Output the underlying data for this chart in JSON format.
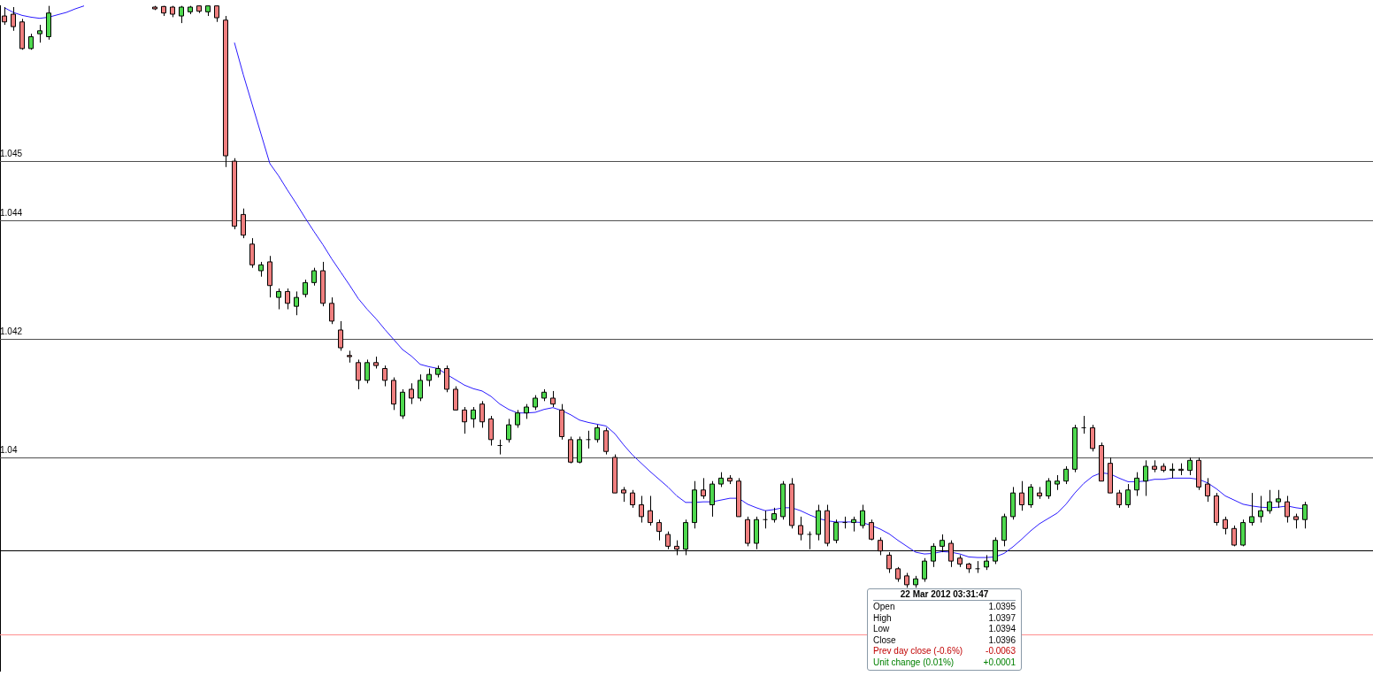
{
  "chart_data": {
    "type": "candlestick",
    "categories": [
      null,
      null,
      null,
      null,
      null,
      null,
      null,
      null,
      null,
      null,
      null,
      null,
      null,
      null,
      null,
      null,
      null,
      null,
      null,
      null,
      null,
      null,
      null,
      null,
      null,
      null,
      null,
      null,
      null,
      null,
      null,
      null,
      null,
      null,
      null,
      null,
      null,
      null,
      null,
      null,
      null,
      null,
      null,
      null,
      null,
      null,
      null,
      null,
      null,
      null,
      null,
      null,
      null,
      null,
      null,
      null,
      null,
      null,
      null,
      null,
      null,
      null,
      null,
      null,
      null,
      null,
      null,
      null,
      null,
      null,
      null,
      null,
      null,
      null,
      null,
      null,
      null,
      null,
      null,
      null,
      null,
      null,
      null,
      null,
      null,
      null,
      null,
      null,
      null,
      null,
      null,
      null,
      null,
      null,
      null,
      null,
      null,
      null,
      null,
      null,
      null,
      null,
      null,
      null,
      null,
      null,
      null,
      null,
      null,
      null,
      null,
      null,
      null,
      null,
      null,
      null,
      null,
      null,
      null,
      null,
      null,
      null,
      null,
      null,
      null,
      null,
      null,
      null,
      null,
      null,
      null,
      null,
      null,
      null,
      null,
      null,
      null,
      null,
      null,
      null,
      null,
      null,
      null,
      null,
      null,
      null,
      null,
      null
    ],
    "ohlc": [
      [
        1.04745,
        1.0476,
        1.0473,
        1.04735
      ],
      [
        1.04748,
        1.0476,
        1.0472,
        1.04727
      ],
      [
        1.04735,
        1.0474,
        1.04688,
        1.0469
      ],
      [
        1.0469,
        1.04715,
        1.04688,
        1.0471
      ],
      [
        1.04715,
        1.0473,
        1.047,
        1.0472
      ],
      [
        1.0471,
        1.04762,
        1.04705,
        1.0475
      ],
      null,
      null,
      null,
      null,
      null,
      null,
      null,
      null,
      null,
      null,
      null,
      [
        1.0476,
        1.04762,
        1.04755,
        1.04757
      ],
      [
        1.04761,
        1.04762,
        1.04745,
        1.0475
      ],
      [
        1.0476,
        1.04762,
        1.04743,
        1.04748
      ],
      [
        1.04745,
        1.04762,
        1.04733,
        1.0476
      ],
      [
        1.04752,
        1.04762,
        1.04748,
        1.0476
      ],
      [
        1.04762,
        1.04762,
        1.0475,
        1.04753
      ],
      [
        1.04752,
        1.04762,
        1.04745,
        1.04762
      ],
      [
        1.04762,
        1.04762,
        1.04735,
        1.04742
      ],
      [
        1.04738,
        1.04745,
        1.0449,
        1.04509
      ],
      [
        1.045,
        1.04505,
        1.04385,
        1.0439
      ],
      [
        1.0441,
        1.0442,
        1.0437,
        1.04375
      ],
      [
        1.0436,
        1.0437,
        1.0432,
        1.04325
      ],
      [
        1.04315,
        1.0433,
        1.04305,
        1.04325
      ],
      [
        1.0433,
        1.0434,
        1.0427,
        1.0429
      ],
      [
        1.0427,
        1.04285,
        1.0425,
        1.0428
      ],
      [
        1.0428,
        1.04285,
        1.0425,
        1.0426
      ],
      [
        1.04255,
        1.0428,
        1.0424,
        1.0427
      ],
      [
        1.04275,
        1.043,
        1.0427,
        1.04295
      ],
      [
        1.04295,
        1.0432,
        1.0429,
        1.04315
      ],
      [
        1.04315,
        1.0433,
        1.04255,
        1.0426
      ],
      [
        1.0426,
        1.0427,
        1.04225,
        1.0423
      ],
      [
        1.04215,
        1.0423,
        1.0418,
        1.04185
      ],
      [
        1.04172,
        1.0418,
        1.0416,
        1.0417
      ],
      [
        1.0416,
        1.04165,
        1.04115,
        1.0413
      ],
      [
        1.0413,
        1.04165,
        1.04125,
        1.0416
      ],
      [
        1.0416,
        1.0417,
        1.0415,
        1.04155
      ],
      [
        1.0415,
        1.04155,
        1.0412,
        1.0413
      ],
      [
        1.0413,
        1.04135,
        1.0408,
        1.0409
      ],
      [
        1.0407,
        1.04115,
        1.04065,
        1.0411
      ],
      [
        1.04115,
        1.04125,
        1.0409,
        1.041
      ],
      [
        1.041,
        1.0414,
        1.04095,
        1.0413
      ],
      [
        1.0413,
        1.0415,
        1.0412,
        1.0414
      ],
      [
        1.0414,
        1.04155,
        1.04135,
        1.0415
      ],
      [
        1.0415,
        1.04155,
        1.0411,
        1.04115
      ],
      [
        1.04115,
        1.0412,
        1.0408,
        1.0408
      ],
      [
        1.0408,
        1.04085,
        1.0404,
        1.0406
      ],
      [
        1.04065,
        1.04085,
        1.0405,
        1.0408
      ],
      [
        1.0409,
        1.04095,
        1.0405,
        1.0406
      ],
      [
        1.04065,
        1.0407,
        1.0402,
        1.0403
      ],
      [
        1.0402,
        1.0403,
        1.04005,
        1.0402
      ],
      [
        1.0403,
        1.04065,
        1.04025,
        1.04055
      ],
      [
        1.04055,
        1.0408,
        1.0405,
        1.04075
      ],
      [
        1.04075,
        1.0409,
        1.04065,
        1.04085
      ],
      [
        1.04085,
        1.04105,
        1.0408,
        1.041
      ],
      [
        1.041,
        1.04115,
        1.04095,
        1.0411
      ],
      [
        1.041,
        1.04112,
        1.04085,
        1.0409
      ],
      [
        1.0408,
        1.0409,
        1.0403,
        1.04035
      ],
      [
        1.0403,
        1.04035,
        1.0399,
        1.03992
      ],
      [
        1.03992,
        1.04035,
        1.0399,
        1.0403
      ],
      [
        1.0403,
        1.04045,
        1.04015,
        1.0403
      ],
      [
        1.0403,
        1.04055,
        1.04025,
        1.0405
      ],
      [
        1.04045,
        1.0405,
        1.04005,
        1.0401
      ],
      [
        1.04,
        1.04005,
        1.0394,
        1.0394
      ],
      [
        1.03945,
        1.0395,
        1.03925,
        1.0394
      ],
      [
        1.0394,
        1.03945,
        1.03915,
        1.0392
      ],
      [
        1.0392,
        1.03935,
        1.0389,
        1.039
      ],
      [
        1.0391,
        1.03935,
        1.03885,
        1.0389
      ],
      [
        1.0389,
        1.03895,
        1.0386,
        1.03875
      ],
      [
        1.0387,
        1.03875,
        1.03845,
        1.0385
      ],
      [
        1.0385,
        1.0386,
        1.03835,
        1.03845
      ],
      [
        1.03845,
        1.03895,
        1.03835,
        1.0389
      ],
      [
        1.0389,
        1.0396,
        1.0388,
        1.03945
      ],
      [
        1.03945,
        1.03965,
        1.0393,
        1.03935
      ],
      [
        1.0392,
        1.0396,
        1.039,
        1.03955
      ],
      [
        1.03955,
        1.03975,
        1.0395,
        1.03965
      ],
      [
        1.03965,
        1.0397,
        1.03955,
        1.0396
      ],
      [
        1.0396,
        1.03965,
        1.039,
        1.039
      ],
      [
        1.03895,
        1.039,
        1.0385,
        1.03855
      ],
      [
        1.03855,
        1.039,
        1.03845,
        1.03895
      ],
      [
        1.03895,
        1.0391,
        1.0388,
        1.03895
      ],
      [
        1.03895,
        1.03915,
        1.0389,
        1.03905
      ],
      [
        1.039,
        1.0396,
        1.03895,
        1.03955
      ],
      [
        1.03955,
        1.03965,
        1.0388,
        1.03885
      ],
      [
        1.03885,
        1.039,
        1.0386,
        1.0387
      ],
      [
        1.0387,
        1.03875,
        1.03845,
        1.0387
      ],
      [
        1.0387,
        1.0392,
        1.0386,
        1.0391
      ],
      [
        1.0391,
        1.0392,
        1.0385,
        1.03855
      ],
      [
        1.0386,
        1.03895,
        1.03855,
        1.0389
      ],
      [
        1.0389,
        1.039,
        1.0388,
        1.0389
      ],
      [
        1.0389,
        1.039,
        1.03875,
        1.03895
      ],
      [
        1.03885,
        1.0392,
        1.0388,
        1.0391
      ],
      [
        1.0389,
        1.03895,
        1.0386,
        1.03862
      ],
      [
        1.0386,
        1.03865,
        1.03835,
        1.03842
      ],
      [
        1.03835,
        1.0384,
        1.03805,
        1.03812
      ],
      [
        1.03812,
        1.03815,
        1.0379,
        1.03795
      ],
      [
        1.038,
        1.03805,
        1.0378,
        1.03785
      ],
      [
        1.03785,
        1.038,
        1.0378,
        1.03795
      ],
      [
        1.03795,
        1.0383,
        1.0379,
        1.03825
      ],
      [
        1.03825,
        1.03855,
        1.03815,
        1.0385
      ],
      [
        1.0385,
        1.0387,
        1.0384,
        1.0386
      ],
      [
        1.03855,
        1.0386,
        1.03815,
        1.03825
      ],
      [
        1.0383,
        1.03835,
        1.03815,
        1.0382
      ],
      [
        1.0382,
        1.03822,
        1.03805,
        1.03812
      ],
      [
        1.03812,
        1.03825,
        1.03805,
        1.03812
      ],
      [
        1.03815,
        1.03835,
        1.0381,
        1.03825
      ],
      [
        1.03825,
        1.03865,
        1.0382,
        1.0386
      ],
      [
        1.0386,
        1.03905,
        1.0385,
        1.039
      ],
      [
        1.039,
        1.0395,
        1.03895,
        1.0394
      ],
      [
        1.0394,
        1.0396,
        1.0391,
        1.0392
      ],
      [
        1.0392,
        1.03955,
        1.03915,
        1.0395
      ],
      [
        1.0394,
        1.0395,
        1.0393,
        1.03935
      ],
      [
        1.03935,
        1.03965,
        1.0393,
        1.0396
      ],
      [
        1.03955,
        1.0397,
        1.03945,
        1.0396
      ],
      [
        1.0396,
        1.03985,
        1.03955,
        1.0398
      ],
      [
        1.0398,
        1.04055,
        1.03975,
        1.0405
      ],
      [
        1.0405,
        1.0407,
        1.0404,
        1.0405
      ],
      [
        1.0405,
        1.04055,
        1.0401,
        1.04015
      ],
      [
        1.0402,
        1.04025,
        1.0396,
        1.0396
      ],
      [
        1.0399,
        1.04,
        1.0394,
        1.0394
      ],
      [
        1.0394,
        1.03945,
        1.03915,
        1.0392
      ],
      [
        1.0392,
        1.03955,
        1.03915,
        1.03945
      ],
      [
        1.03945,
        1.03975,
        1.03935,
        1.03965
      ],
      [
        1.0396,
        1.03995,
        1.03935,
        1.03985
      ],
      [
        1.03985,
        1.03995,
        1.03975,
        1.0398
      ],
      [
        1.03985,
        1.0399,
        1.03975,
        1.03978
      ],
      [
        1.03978,
        1.0399,
        1.03965,
        1.0398
      ],
      [
        1.0398,
        1.0399,
        1.0397,
        1.03978
      ],
      [
        1.03978,
        1.04,
        1.0397,
        1.03995
      ],
      [
        1.03995,
        1.04,
        1.03945,
        1.0395
      ],
      [
        1.03955,
        1.03965,
        1.03925,
        1.03935
      ],
      [
        1.03935,
        1.0394,
        1.03885,
        1.0389
      ],
      [
        1.03895,
        1.039,
        1.0387,
        1.0388
      ],
      [
        1.0388,
        1.03885,
        1.0385,
        1.03852
      ],
      [
        1.03852,
        1.03895,
        1.0385,
        1.0389
      ],
      [
        1.0389,
        1.0394,
        1.03885,
        1.039
      ],
      [
        1.039,
        1.03935,
        1.0389,
        1.0391
      ],
      [
        1.0391,
        1.03945,
        1.03905,
        1.03925
      ],
      [
        1.03925,
        1.03945,
        1.03915,
        1.0393
      ],
      [
        1.03925,
        1.03935,
        1.0389,
        1.039
      ],
      [
        1.039,
        1.03905,
        1.0388,
        1.03895
      ],
      [
        1.03895,
        1.03925,
        1.0388,
        1.0392
      ]
    ],
    "series": [
      {
        "type": "line",
        "color": "#2a1aff",
        "values": [
          1.04759,
          1.04751,
          1.04746,
          1.04743,
          1.04741,
          1.04743,
          1.04747,
          1.04751,
          1.04757,
          1.04762,
          null,
          null,
          null,
          null,
          null,
          null,
          null,
          null,
          null,
          null,
          null,
          null,
          null,
          null,
          null,
          null,
          1.047,
          1.04646,
          1.04596,
          1.04546,
          1.04496,
          1.04475,
          1.04451,
          1.04428,
          1.04404,
          1.04381,
          1.04359,
          1.04335,
          1.04313,
          1.04291,
          1.04268,
          1.0425,
          1.04234,
          1.04216,
          1.04199,
          1.04182,
          1.04171,
          1.04157,
          1.04153,
          1.0415,
          1.0414,
          1.04131,
          1.04122,
          1.04116,
          1.04112,
          1.04103,
          1.0409,
          1.04081,
          1.04075,
          1.04075,
          1.04076,
          1.04081,
          1.04084,
          1.04079,
          1.04072,
          1.04063,
          1.04059,
          1.04056,
          1.04053,
          1.0404,
          1.04021,
          1.04004,
          1.0399,
          1.03976,
          1.03963,
          1.0395,
          1.03935,
          1.03924,
          1.03924,
          1.03925,
          1.03925,
          1.03928,
          1.03931,
          1.03931,
          1.03921,
          1.03915,
          1.0391,
          1.03912,
          1.03915,
          1.03915,
          1.0391,
          1.03903,
          1.03897,
          1.03893,
          1.03891,
          1.03891,
          1.03891,
          1.0389,
          1.03885,
          1.03879,
          1.03871,
          1.0386,
          1.0385,
          1.0384,
          1.03837,
          1.03838,
          1.03841,
          1.0384,
          1.03837,
          1.03832,
          1.03831,
          1.03831,
          1.03832,
          1.03838,
          1.03849,
          1.03862,
          1.03876,
          1.03888,
          1.03897,
          1.03906,
          1.03921,
          1.0394,
          1.03956,
          1.03968,
          1.03974,
          1.03972,
          1.03965,
          1.03959,
          1.03959,
          1.0396,
          1.03963,
          1.03963,
          1.03965,
          1.03965,
          1.03965,
          1.03963,
          1.03957,
          1.03947,
          1.03935,
          1.03928,
          1.03921,
          1.03918,
          1.03916,
          1.03915,
          1.03916,
          1.03918,
          1.03915,
          1.03913
        ]
      }
    ],
    "ylim": [
      1.0364,
      1.04763
    ],
    "yticks": [
      1.045,
      1.044,
      1.042,
      1.04
    ],
    "grid": "y",
    "tick_labels": "y",
    "ref_lines": [
      {
        "axis": "y",
        "value": 1.03843,
        "color": "#000000"
      },
      {
        "axis": "y",
        "value": 1.03701,
        "color": "#ff9090"
      }
    ],
    "annotations": [
      "22 Mar 2012 03:31:47",
      "Open",
      "1.0395",
      "High",
      "1.0397",
      "Low",
      "1.0394",
      "Close",
      "1.0396",
      "Prev day close (-0.6%)",
      "-0.0063",
      "Unit change (0.01%)",
      "+0.0001"
    ]
  }
}
